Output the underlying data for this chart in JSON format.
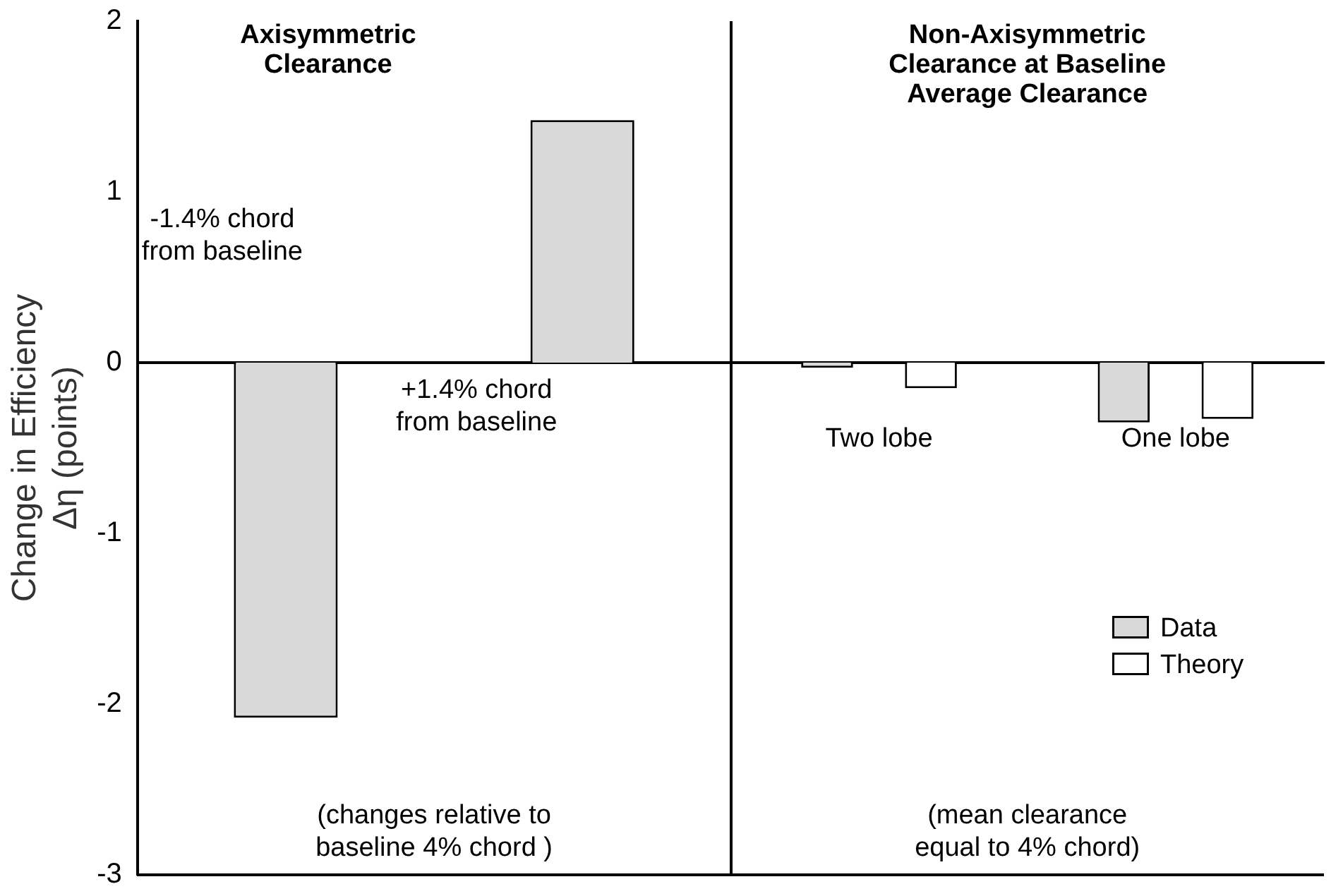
{
  "chart_data": {
    "type": "bar",
    "ylabel": "Change in Efficiency\nΔη (points)",
    "categories": [
      null,
      null,
      "Two lobe",
      "One lobe"
    ],
    "series": [
      {
        "name": "Data",
        "color": "#d9d9d9",
        "values": [
          -2.08,
          1.42,
          -0.03,
          -0.35
        ]
      },
      {
        "name": "Theory",
        "color": "#ffffff",
        "values": [
          null,
          null,
          -0.15,
          -0.33
        ]
      }
    ],
    "ylim": [
      -3,
      2
    ],
    "yticks": [
      -3,
      -2,
      -1,
      0,
      1,
      2
    ],
    "grid": false,
    "legend": "right",
    "annotations": [
      "Axisymmetric\nClearance",
      "Non-Axisymmetric\nClearance at Baseline\nAverage Clearance",
      "(changes relative to\nbaseline 4% chord )",
      "(mean clearance\nequal to 4% chord)",
      "-1.4% chord\nfrom baseline",
      "+1.4% chord\nfrom baseline"
    ]
  }
}
